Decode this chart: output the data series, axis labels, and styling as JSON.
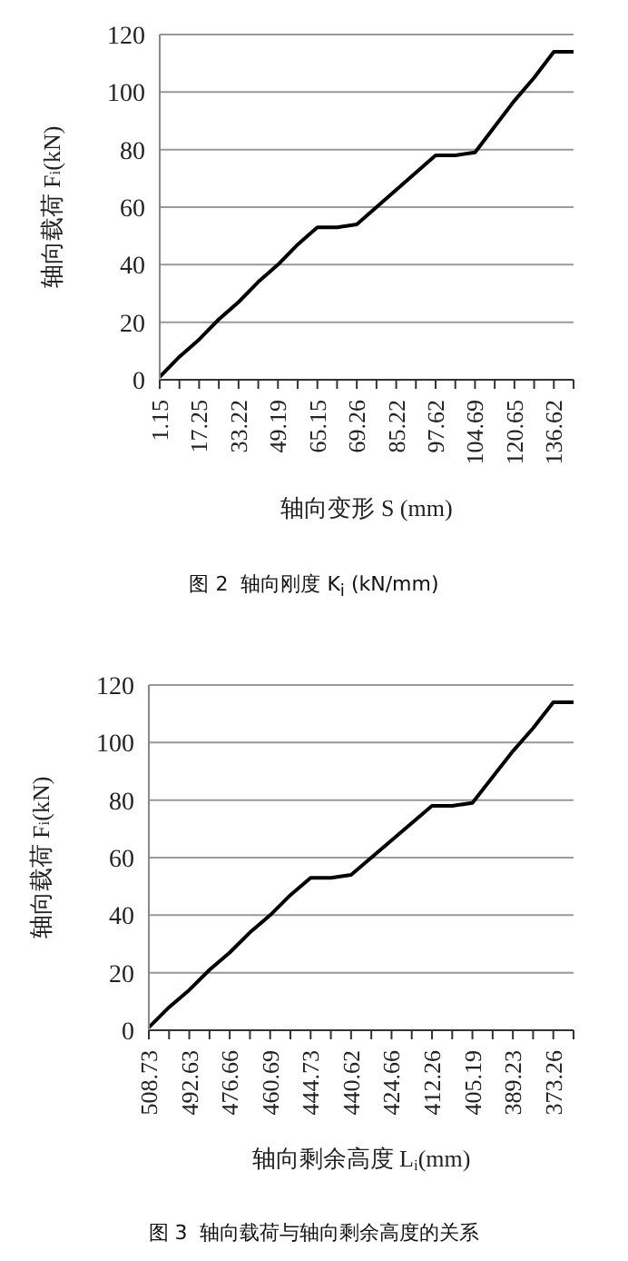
{
  "chart_data": [
    {
      "type": "line",
      "title": "图 2  轴向刚度 K$_{i}$ (kN/mm)",
      "xlabel": "轴向变形 S (mm)",
      "ylabel": "轴向载荷  F$_{i}$(kN)",
      "categories": [
        "1.15",
        null,
        "17.25",
        null,
        "33.22",
        null,
        "49.19",
        null,
        "65.15",
        null,
        "69.26",
        null,
        "85.22",
        null,
        "97.62",
        null,
        "104.69",
        null,
        "120.65",
        null,
        "136.62",
        null
      ],
      "series": [
        {
          "color": "#000000",
          "values": [
            1,
            8,
            14,
            21,
            27,
            34,
            40,
            47,
            53,
            53,
            54,
            60,
            66,
            72,
            78,
            78,
            79,
            88,
            97,
            105,
            114,
            114
          ]
        }
      ],
      "ylim": [
        0,
        120
      ],
      "yticks": [
        0,
        20,
        40,
        60,
        80,
        100,
        120
      ],
      "grid": "y",
      "legend": false,
      "marker": "none",
      "line_style": "solid"
    },
    {
      "type": "line",
      "title": "图 3  轴向载荷与轴向剩余高度的关系",
      "xlabel": "轴向剩余高度 L$_{i}$(mm)",
      "ylabel": "轴向载荷 F$_{i}$(kN)",
      "categories": [
        "508.73",
        null,
        "492.63",
        null,
        "476.66",
        null,
        "460.69",
        null,
        "444.73",
        null,
        "440.62",
        null,
        "424.66",
        null,
        "412.26",
        null,
        "405.19",
        null,
        "389.23",
        null,
        "373.26",
        null
      ],
      "series": [
        {
          "color": "#000000",
          "values": [
            1,
            8,
            14,
            21,
            27,
            34,
            40,
            47,
            53,
            53,
            54,
            60,
            66,
            72,
            78,
            78,
            79,
            88,
            97,
            105,
            114,
            114
          ]
        }
      ],
      "ylim": [
        0,
        120
      ],
      "yticks": [
        0,
        20,
        40,
        60,
        80,
        100,
        120
      ],
      "grid": "y",
      "legend": false,
      "marker": "none",
      "line_style": "solid"
    }
  ]
}
